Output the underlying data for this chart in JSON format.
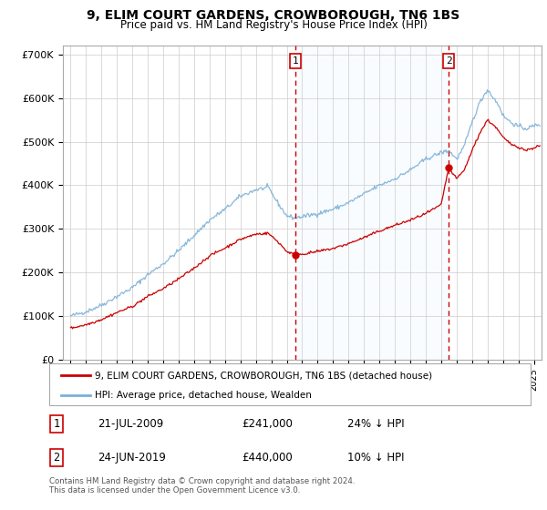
{
  "title": "9, ELIM COURT GARDENS, CROWBOROUGH, TN6 1BS",
  "subtitle": "Price paid vs. HM Land Registry's House Price Index (HPI)",
  "ylim": [
    0,
    720000
  ],
  "xlim_start": 1994.5,
  "xlim_end": 2025.5,
  "yticks": [
    0,
    100000,
    200000,
    300000,
    400000,
    500000,
    600000,
    700000
  ],
  "ytick_labels": [
    "£0",
    "£100K",
    "£200K",
    "£300K",
    "£400K",
    "£500K",
    "£600K",
    "£700K"
  ],
  "hpi_color": "#7ab0d8",
  "price_color": "#cc0000",
  "vline_color": "#cc0000",
  "sale1_x": 2009.55,
  "sale1_y": 241000,
  "sale1_label": "1",
  "sale2_x": 2019.48,
  "sale2_y": 440000,
  "sale2_label": "2",
  "legend_line1": "9, ELIM COURT GARDENS, CROWBOROUGH, TN6 1BS (detached house)",
  "legend_line2": "HPI: Average price, detached house, Wealden",
  "table_row1": [
    "1",
    "21-JUL-2009",
    "£241,000",
    "24% ↓ HPI"
  ],
  "table_row2": [
    "2",
    "24-JUN-2019",
    "£440,000",
    "10% ↓ HPI"
  ],
  "footnote": "Contains HM Land Registry data © Crown copyright and database right 2024.\nThis data is licensed under the Open Government Licence v3.0.",
  "shade_color": "#ddeeff",
  "hpi_anchors_t": [
    1995,
    1996,
    1997,
    1998,
    1999,
    2000,
    2001,
    2002,
    2003,
    2004,
    2005,
    2006,
    2007,
    2007.8,
    2008.5,
    2009,
    2009.5,
    2010,
    2011,
    2012,
    2013,
    2014,
    2015,
    2016,
    2017,
    2018,
    2019,
    2019.5,
    2020,
    2020.5,
    2021,
    2021.5,
    2022,
    2022.3,
    2022.8,
    2023,
    2023.5,
    2024,
    2024.5,
    2025.3
  ],
  "hpi_anchors_v": [
    100000,
    110000,
    125000,
    145000,
    165000,
    195000,
    220000,
    250000,
    285000,
    320000,
    345000,
    375000,
    390000,
    395000,
    355000,
    330000,
    325000,
    328000,
    335000,
    345000,
    360000,
    380000,
    400000,
    415000,
    435000,
    460000,
    475000,
    480000,
    460000,
    490000,
    545000,
    590000,
    620000,
    605000,
    580000,
    560000,
    545000,
    535000,
    530000,
    540000
  ],
  "price_anchors_t": [
    1995,
    1996,
    1997,
    1998,
    1999,
    2000,
    2001,
    2002,
    2003,
    2004,
    2005,
    2006,
    2007,
    2007.8,
    2008.5,
    2009,
    2009.55,
    2010,
    2011,
    2012,
    2013,
    2014,
    2015,
    2016,
    2017,
    2018,
    2019,
    2019.48,
    2020,
    2020.5,
    2021,
    2021.5,
    2022,
    2022.5,
    2023,
    2023.5,
    2024,
    2024.5,
    2025.3
  ],
  "price_anchors_v": [
    72000,
    80000,
    92000,
    108000,
    122000,
    145000,
    163000,
    185000,
    210000,
    238000,
    256000,
    276000,
    288000,
    290000,
    268000,
    248000,
    241000,
    242000,
    248000,
    255000,
    266000,
    280000,
    295000,
    308000,
    320000,
    335000,
    355000,
    440000,
    415000,
    435000,
    480000,
    520000,
    550000,
    535000,
    510000,
    495000,
    488000,
    480000,
    490000
  ]
}
